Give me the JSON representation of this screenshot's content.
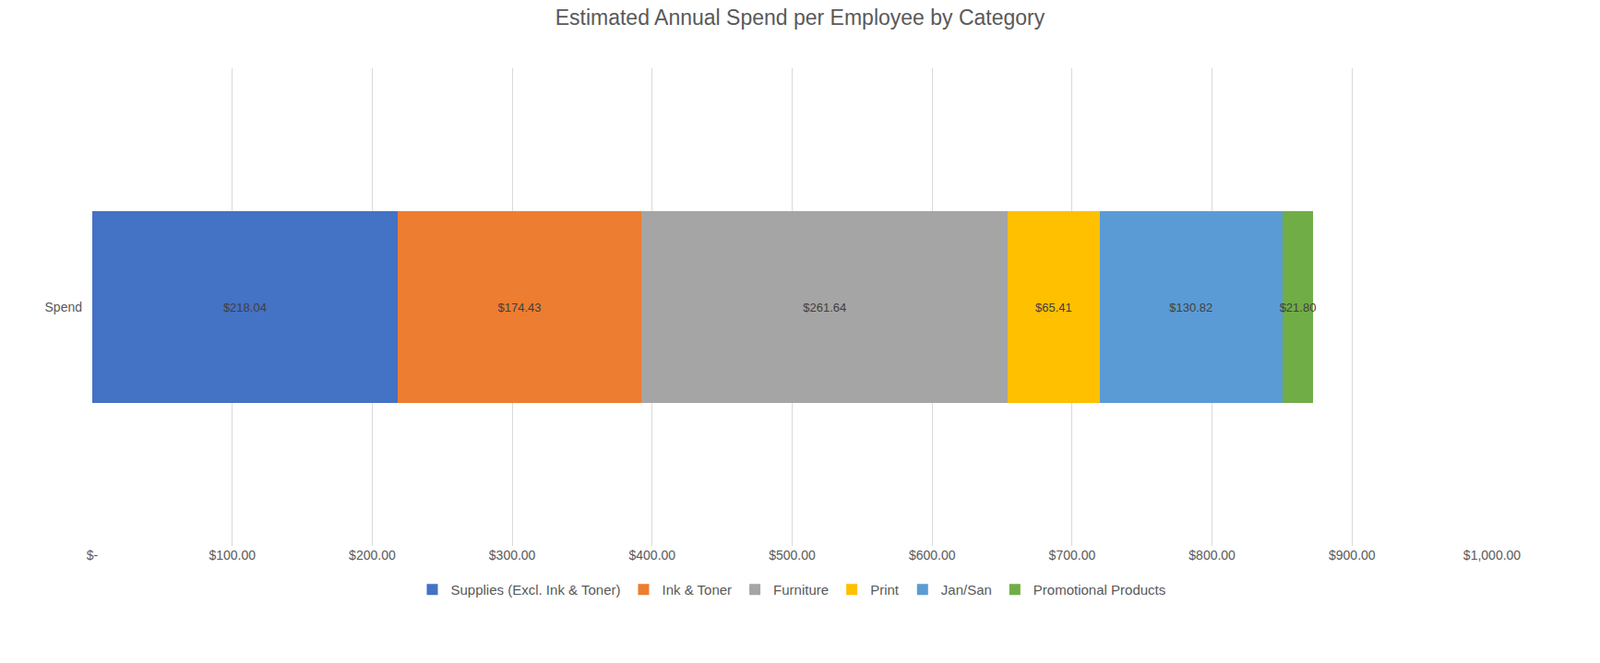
{
  "chart_data": {
    "type": "bar",
    "title": "Estimated Annual Spend per Employee by Category",
    "orientation": "horizontal",
    "stacked": true,
    "data_labels": true,
    "grid": true,
    "legend": "bottom",
    "categories": [
      "Spend"
    ],
    "series": [
      {
        "name": "Supplies (Excl. Ink & Toner)",
        "color": "#4472c4",
        "values": [
          218.04
        ],
        "value_labels": [
          "$218.04"
        ]
      },
      {
        "name": "Ink & Toner",
        "color": "#ed7d31",
        "values": [
          174.43
        ],
        "value_labels": [
          "$174.43"
        ]
      },
      {
        "name": "Furniture",
        "color": "#a5a5a5",
        "values": [
          261.64
        ],
        "value_labels": [
          "$261.64"
        ]
      },
      {
        "name": "Print",
        "color": "#ffc000",
        "values": [
          65.41
        ],
        "value_labels": [
          "$65.41"
        ]
      },
      {
        "name": "Jan/San",
        "color": "#5b9bd5",
        "values": [
          130.82
        ],
        "value_labels": [
          "$130.82"
        ]
      },
      {
        "name": "Promotional Products",
        "color": "#70ad47",
        "values": [
          21.8
        ],
        "value_labels": [
          "$21.80"
        ]
      }
    ],
    "xlim": [
      0,
      1000
    ],
    "xticks": [
      {
        "value": 0,
        "label": "$-"
      },
      {
        "value": 100,
        "label": "$100.00"
      },
      {
        "value": 200,
        "label": "$200.00"
      },
      {
        "value": 300,
        "label": "$300.00"
      },
      {
        "value": 400,
        "label": "$400.00"
      },
      {
        "value": 500,
        "label": "$500.00"
      },
      {
        "value": 600,
        "label": "$600.00"
      },
      {
        "value": 700,
        "label": "$700.00"
      },
      {
        "value": 800,
        "label": "$800.00"
      },
      {
        "value": 900,
        "label": "$900.00"
      },
      {
        "value": 1000,
        "label": "$1,000.00"
      }
    ]
  }
}
